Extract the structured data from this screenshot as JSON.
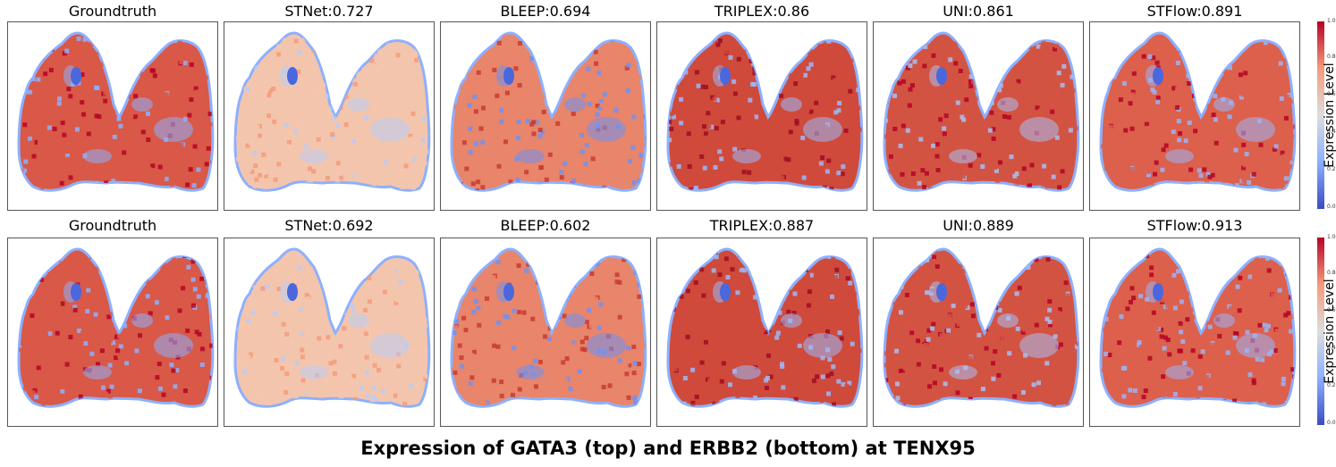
{
  "rows": [
    {
      "gene": "GATA3",
      "panels": [
        {
          "title": "Groundtruth",
          "method": "Groundtruth",
          "score": null
        },
        {
          "title": "STNet:0.727",
          "method": "STNet",
          "score": 0.727
        },
        {
          "title": "BLEEP:0.694",
          "method": "BLEEP",
          "score": 0.694
        },
        {
          "title": "TRIPLEX:0.86",
          "method": "TRIPLEX",
          "score": 0.86
        },
        {
          "title": "UNI:0.861",
          "method": "UNI",
          "score": 0.861
        },
        {
          "title": "STFlow:0.891",
          "method": "STFlow",
          "score": 0.891
        }
      ]
    },
    {
      "gene": "ERBB2",
      "panels": [
        {
          "title": "Groundtruth",
          "method": "Groundtruth",
          "score": null
        },
        {
          "title": "STNet:0.692",
          "method": "STNet",
          "score": 0.692
        },
        {
          "title": "BLEEP:0.602",
          "method": "BLEEP",
          "score": 0.602
        },
        {
          "title": "TRIPLEX:0.887",
          "method": "TRIPLEX",
          "score": 0.887
        },
        {
          "title": "UNI:0.889",
          "method": "UNI",
          "score": 0.889
        },
        {
          "title": "STFlow:0.913",
          "method": "STFlow",
          "score": 0.913
        }
      ]
    }
  ],
  "colorbar": {
    "label": "Expression Level",
    "ticks": [
      "0.0",
      "0.2",
      "0.4",
      "0.6",
      "0.8",
      "1.0"
    ],
    "colormap": [
      "#3b4cc0",
      "#8db0fe",
      "#dddddd",
      "#f49a7b",
      "#b40426"
    ]
  },
  "caption": "Expression of GATA3 (top) and ERBB2 (bottom) at TENX95"
}
